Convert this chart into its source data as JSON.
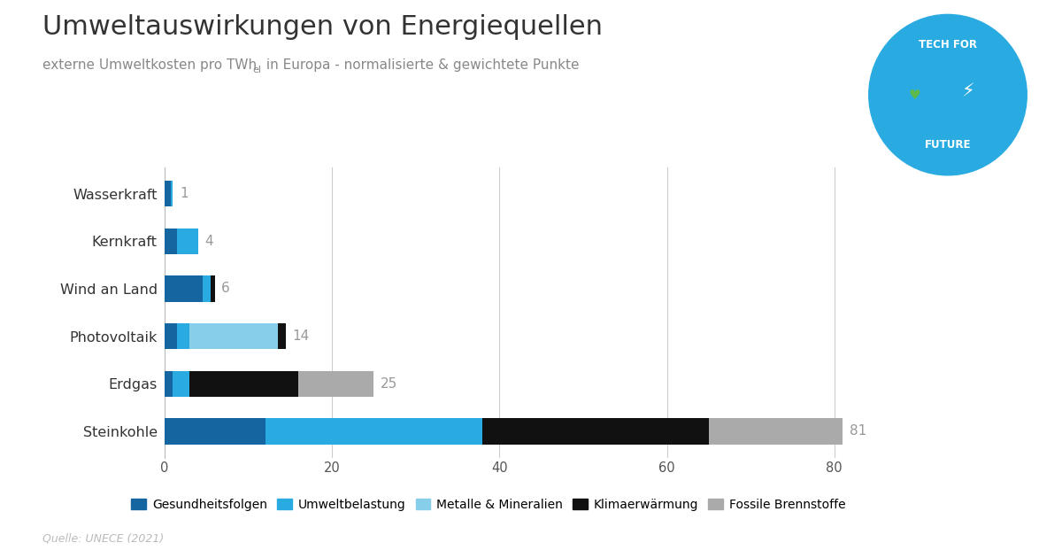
{
  "categories": [
    "Steinkohle",
    "Erdgas",
    "Photovoltaik",
    "Wind an Land",
    "Kernkraft",
    "Wasserkraft"
  ],
  "totals": [
    81,
    25,
    14,
    6,
    4,
    1
  ],
  "segments": {
    "Gesundheitsfolgen": [
      12.0,
      1.0,
      1.5,
      4.5,
      1.5,
      0.7
    ],
    "Umweltbelastung": [
      26.0,
      2.0,
      1.5,
      1.0,
      2.5,
      0.3
    ],
    "Metalle & Mineralien": [
      0.0,
      0.0,
      10.5,
      0.0,
      0.0,
      0.0
    ],
    "Klimaerwärmung": [
      27.0,
      13.0,
      1.0,
      0.5,
      0.0,
      0.0
    ],
    "Fossile Brennstoffe": [
      16.0,
      9.0,
      0.0,
      0.0,
      0.0,
      0.0
    ]
  },
  "colors": {
    "Gesundheitsfolgen": "#1565a0",
    "Umweltbelastung": "#29abe2",
    "Metalle & Mineralien": "#87ceeb",
    "Klimaerwärmung": "#111111",
    "Fossile Brennstoffe": "#aaaaaa"
  },
  "title": "Umweltauswirkungen von Energiequellen",
  "subtitle": "externe Umweltkosten pro TWh",
  "subtitle_sub": "el",
  "subtitle_rest": " in Europa - normalisierte & gewichtete Punkte",
  "source": "Quelle: UNECE (2021)",
  "xlim": [
    0,
    85
  ],
  "xticks": [
    0,
    20,
    40,
    60,
    80
  ],
  "background_color": "#ffffff",
  "grid_color": "#cccccc",
  "title_color": "#333333",
  "label_color": "#999999"
}
